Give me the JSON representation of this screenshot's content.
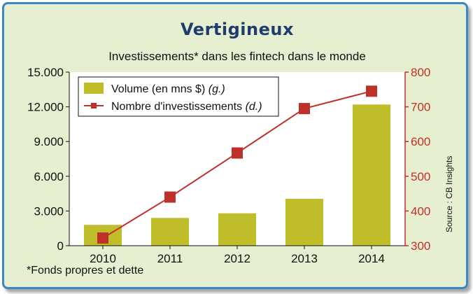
{
  "chart_data": {
    "type": "bar",
    "title": "Vertigineux",
    "subtitle": "Investissements* dans les fintech dans le monde",
    "categories": [
      "2010",
      "2011",
      "2012",
      "2013",
      "2014"
    ],
    "series": [
      {
        "name": "Volume (en mns $)",
        "name_note": "(g.)",
        "type": "bar",
        "axis": "left",
        "color": "#bfbe2a",
        "values": [
          1800,
          2400,
          2800,
          4050,
          12200
        ]
      },
      {
        "name": "Nombre d'investissements",
        "name_note": "(d.)",
        "type": "line",
        "axis": "right",
        "color": "#c0302a",
        "values": [
          322,
          440,
          567,
          695,
          745
        ]
      }
    ],
    "y_left": {
      "min": 0,
      "max": 15000,
      "ticks": [
        "0",
        "3.000",
        "6.000",
        "9.000",
        "12.000",
        "15.000"
      ],
      "color": "#111111"
    },
    "y_right": {
      "min": 300,
      "max": 800,
      "ticks": [
        "300",
        "400",
        "500",
        "600",
        "700",
        "800"
      ],
      "color": "#c0302a"
    },
    "grid": false,
    "legend": "top-left",
    "source": "Source : CB Insights",
    "footnote": "*Fonds propres et dette"
  }
}
